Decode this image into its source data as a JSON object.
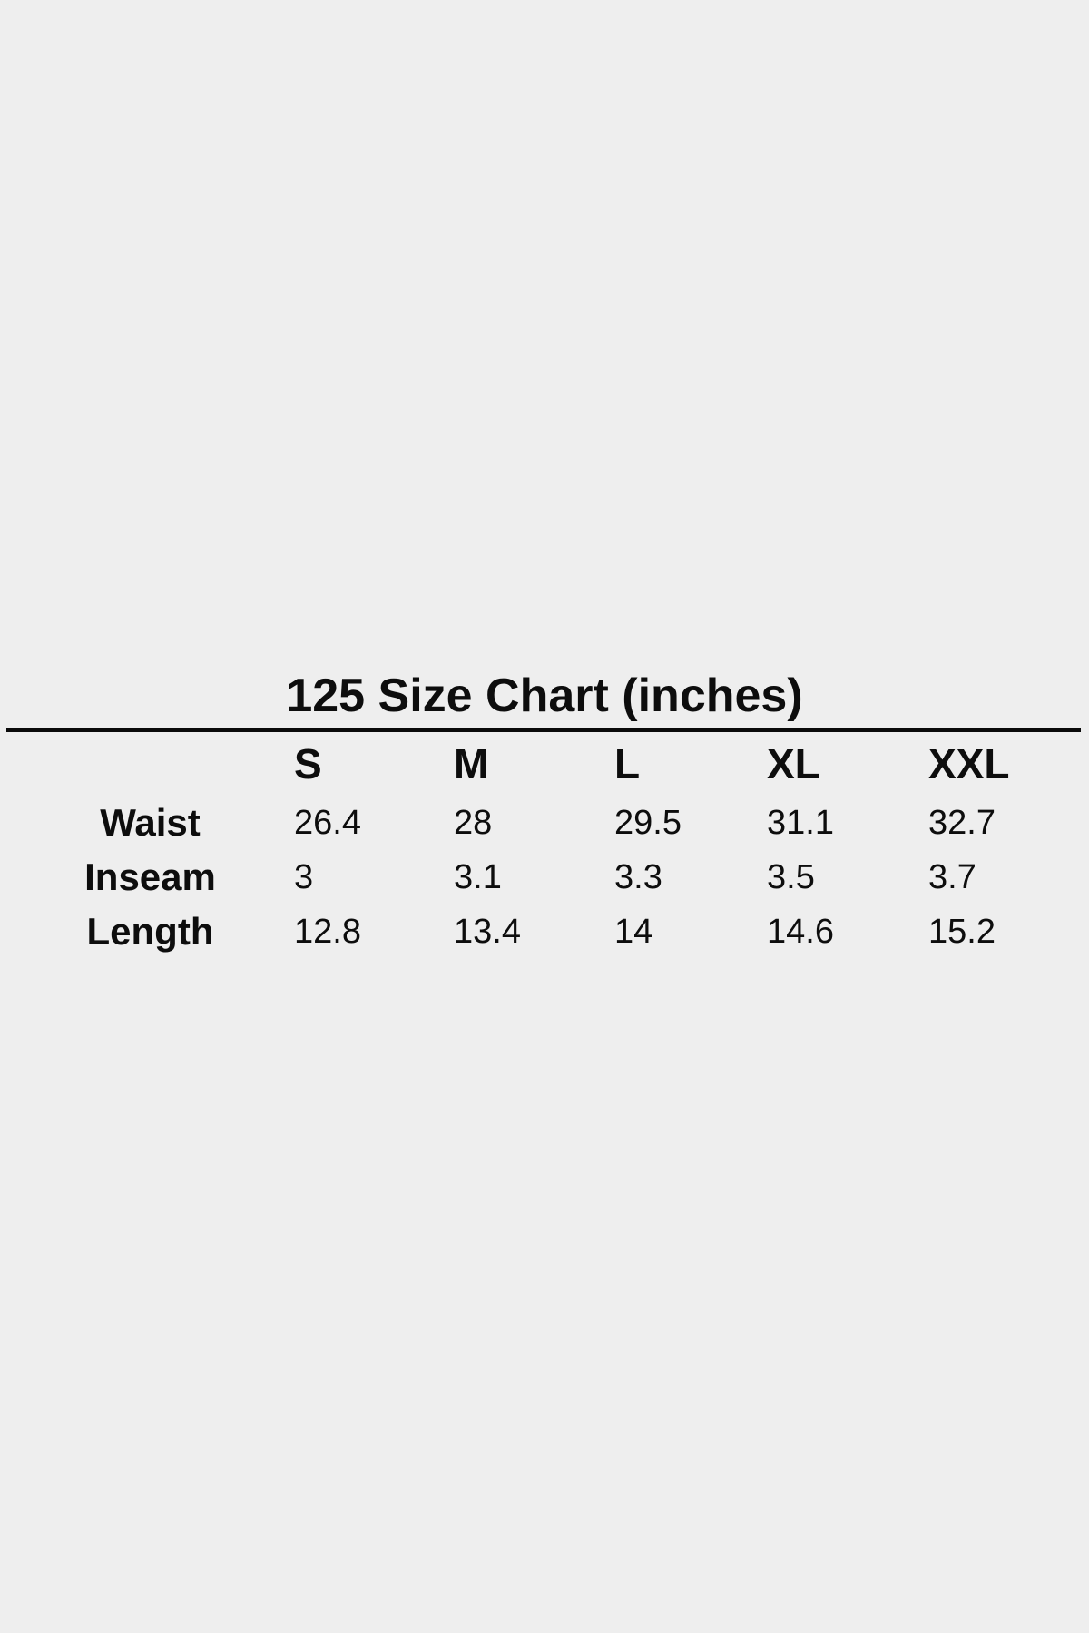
{
  "colors": {
    "background": "#eeeeee",
    "text": "#0d0d0d",
    "rule": "#0a0a0a"
  },
  "chart_data": {
    "type": "table",
    "title": "125 Size Chart (inches)",
    "columns": [
      "S",
      "M",
      "L",
      "XL",
      "XXL"
    ],
    "rows": [
      {
        "label": "Waist",
        "values": [
          26.4,
          28,
          29.5,
          31.1,
          32.7
        ]
      },
      {
        "label": "Inseam",
        "values": [
          3,
          3.1,
          3.3,
          3.5,
          3.7
        ]
      },
      {
        "label": "Length",
        "values": [
          12.8,
          13.4,
          14,
          14.6,
          15.2
        ]
      }
    ],
    "layout": {
      "title_position": "top-center",
      "title_divider": true,
      "grid": "off",
      "value_alignment": "left",
      "row_label_alignment": "center"
    }
  }
}
